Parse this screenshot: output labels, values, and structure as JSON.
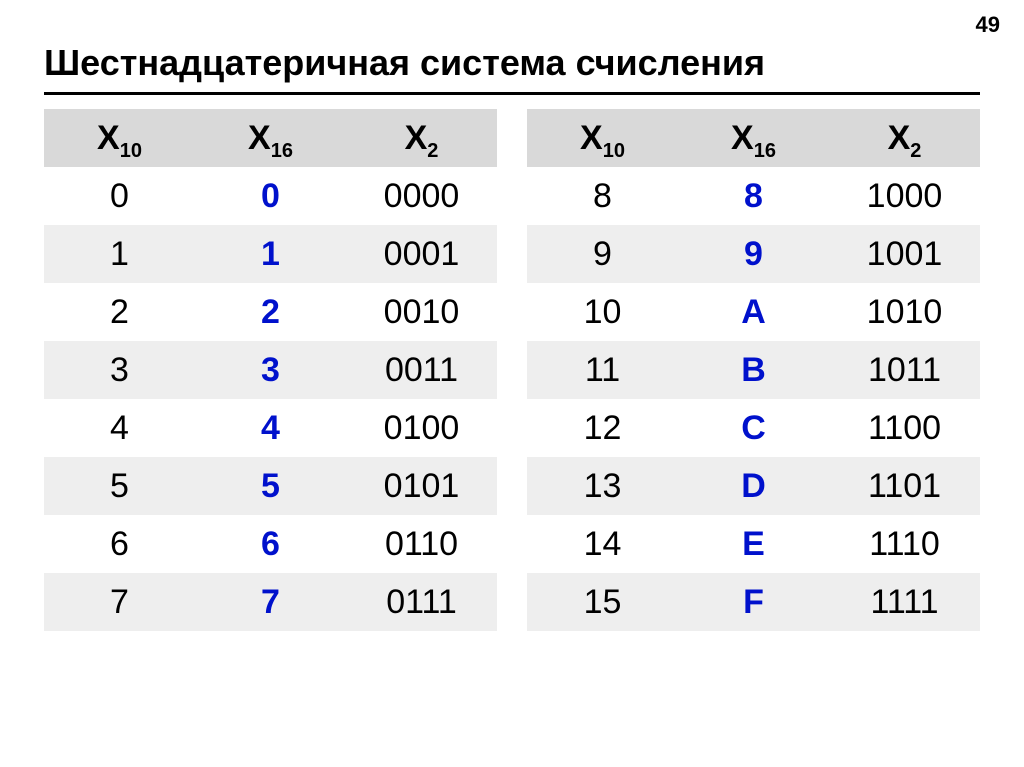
{
  "page_number": "49",
  "title": "Шестнадцатеричная система счисления",
  "headers": {
    "c1_base": "X",
    "c1_sub": "10",
    "c2_base": "X",
    "c2_sub": "16",
    "c3_base": "X",
    "c3_sub": "2"
  },
  "left": [
    {
      "dec": "0",
      "hex": "0",
      "bin": "0000"
    },
    {
      "dec": "1",
      "hex": "1",
      "bin": "0001"
    },
    {
      "dec": "2",
      "hex": "2",
      "bin": "0010"
    },
    {
      "dec": "3",
      "hex": "3",
      "bin": "0011"
    },
    {
      "dec": "4",
      "hex": "4",
      "bin": "0100"
    },
    {
      "dec": "5",
      "hex": "5",
      "bin": "0101"
    },
    {
      "dec": "6",
      "hex": "6",
      "bin": "0110"
    },
    {
      "dec": "7",
      "hex": "7",
      "bin": "0111"
    }
  ],
  "right": [
    {
      "dec": "8",
      "hex": "8",
      "bin": "1000"
    },
    {
      "dec": "9",
      "hex": "9",
      "bin": "1001"
    },
    {
      "dec": "10",
      "hex": "A",
      "bin": "1010"
    },
    {
      "dec": "11",
      "hex": "B",
      "bin": "1011"
    },
    {
      "dec": "12",
      "hex": "C",
      "bin": "1100"
    },
    {
      "dec": "13",
      "hex": "D",
      "bin": "1101"
    },
    {
      "dec": "14",
      "hex": "E",
      "bin": "1110"
    },
    {
      "dec": "15",
      "hex": "F",
      "bin": "1111"
    }
  ],
  "colors": {
    "hex_color": "#0011cc",
    "header_bg": "#d9d9d9",
    "stripe_bg": "#eeeeee",
    "text": "#000000",
    "bg": "#ffffff"
  }
}
